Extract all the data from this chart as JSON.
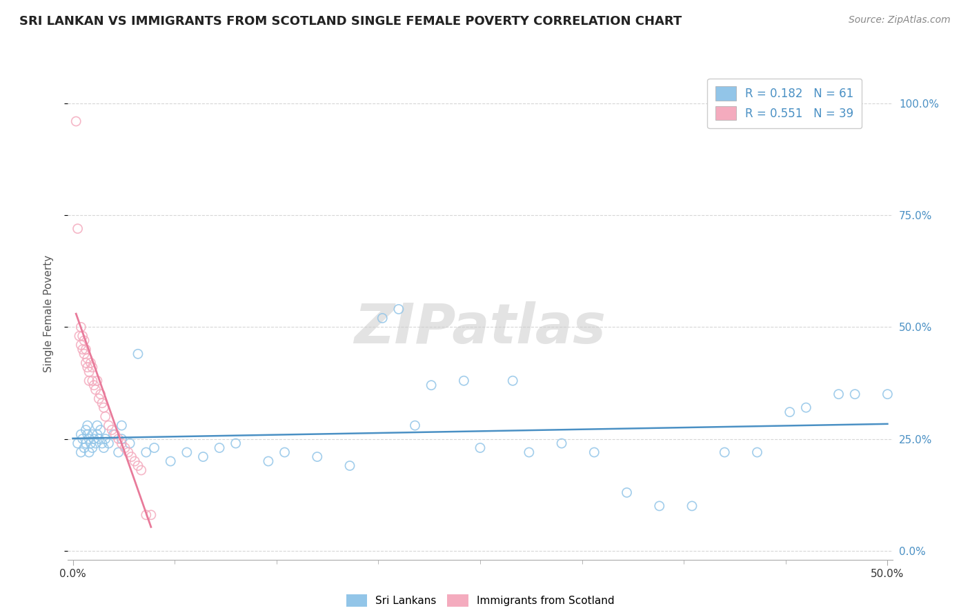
{
  "title": "SRI LANKAN VS IMMIGRANTS FROM SCOTLAND SINGLE FEMALE POVERTY CORRELATION CHART",
  "source": "Source: ZipAtlas.com",
  "ylabel": "Single Female Poverty",
  "yticks_labels": [
    "0.0%",
    "25.0%",
    "50.0%",
    "75.0%",
    "100.0%"
  ],
  "ytick_vals": [
    0.0,
    0.25,
    0.5,
    0.75,
    1.0
  ],
  "xlim": [
    0.0,
    0.5
  ],
  "ylim": [
    -0.02,
    1.08
  ],
  "R_blue": 0.182,
  "N_blue": 61,
  "R_pink": 0.551,
  "N_pink": 39,
  "blue_scatter_color": "#92C5E8",
  "pink_scatter_color": "#F4ABBE",
  "blue_line_color": "#4A90C4",
  "pink_line_color": "#E87A9A",
  "blue_label": "Sri Lankans",
  "pink_label": "Immigrants from Scotland",
  "watermark_text": "ZIPatlas",
  "background_color": "#FFFFFF",
  "grid_color": "#CCCCCC",
  "title_color": "#222222",
  "ytick_color": "#4A90C4",
  "legend_text_color": "#4A90C4",
  "blue_x": [
    0.003,
    0.005,
    0.005,
    0.006,
    0.007,
    0.008,
    0.008,
    0.009,
    0.009,
    0.01,
    0.01,
    0.011,
    0.012,
    0.012,
    0.013,
    0.014,
    0.015,
    0.015,
    0.016,
    0.017,
    0.018,
    0.019,
    0.02,
    0.022,
    0.025,
    0.028,
    0.03,
    0.03,
    0.035,
    0.04,
    0.045,
    0.05,
    0.06,
    0.07,
    0.08,
    0.09,
    0.1,
    0.12,
    0.13,
    0.15,
    0.17,
    0.19,
    0.2,
    0.21,
    0.22,
    0.24,
    0.25,
    0.27,
    0.28,
    0.3,
    0.32,
    0.34,
    0.36,
    0.38,
    0.4,
    0.42,
    0.44,
    0.45,
    0.47,
    0.48,
    0.5
  ],
  "blue_y": [
    0.24,
    0.22,
    0.26,
    0.25,
    0.23,
    0.27,
    0.24,
    0.26,
    0.28,
    0.25,
    0.22,
    0.24,
    0.26,
    0.23,
    0.25,
    0.24,
    0.26,
    0.28,
    0.25,
    0.27,
    0.24,
    0.23,
    0.25,
    0.24,
    0.26,
    0.22,
    0.25,
    0.28,
    0.24,
    0.44,
    0.22,
    0.23,
    0.2,
    0.22,
    0.21,
    0.23,
    0.24,
    0.2,
    0.22,
    0.21,
    0.19,
    0.52,
    0.54,
    0.28,
    0.37,
    0.38,
    0.23,
    0.38,
    0.22,
    0.24,
    0.22,
    0.13,
    0.1,
    0.1,
    0.22,
    0.22,
    0.31,
    0.32,
    0.35,
    0.35,
    0.35
  ],
  "pink_x": [
    0.002,
    0.003,
    0.004,
    0.005,
    0.005,
    0.006,
    0.006,
    0.007,
    0.007,
    0.008,
    0.008,
    0.009,
    0.009,
    0.01,
    0.01,
    0.011,
    0.012,
    0.012,
    0.013,
    0.014,
    0.015,
    0.016,
    0.017,
    0.018,
    0.019,
    0.02,
    0.022,
    0.024,
    0.026,
    0.028,
    0.03,
    0.032,
    0.034,
    0.036,
    0.038,
    0.04,
    0.042,
    0.045,
    0.048
  ],
  "pink_y": [
    0.96,
    0.72,
    0.48,
    0.46,
    0.5,
    0.45,
    0.48,
    0.44,
    0.47,
    0.42,
    0.45,
    0.41,
    0.43,
    0.4,
    0.38,
    0.42,
    0.38,
    0.41,
    0.37,
    0.36,
    0.38,
    0.34,
    0.35,
    0.33,
    0.32,
    0.3,
    0.28,
    0.27,
    0.26,
    0.25,
    0.24,
    0.23,
    0.22,
    0.21,
    0.2,
    0.19,
    0.18,
    0.08,
    0.08
  ]
}
